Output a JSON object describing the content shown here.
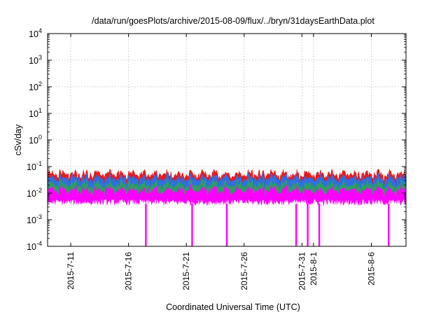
{
  "chart_data": {
    "type": "area",
    "title": "/data/run/goesPlots/archive/2015-08-09/flux/../bryn/31daysEarthData.plot",
    "xlabel": "Coordinated Universal Time (UTC)",
    "ylabel": "cSv/day",
    "x_range": [
      "2015-07-09",
      "2015-08-09"
    ],
    "ylim": [
      0.0001,
      10000
    ],
    "y_scale": "log",
    "grid": true,
    "legend": "none",
    "x_ticks": [
      "2015-7-11",
      "2015-7-16",
      "2015-7-21",
      "2015-7-26",
      "2015-7-31",
      "2015-8-1",
      "2015-8-6"
    ],
    "y_ticks": [
      {
        "value": 0.0001,
        "base": "10",
        "exp": "-4"
      },
      {
        "value": 0.001,
        "base": "10",
        "exp": "-3"
      },
      {
        "value": 0.01,
        "base": "10",
        "exp": "-2"
      },
      {
        "value": 0.1,
        "base": "10",
        "exp": "-1"
      },
      {
        "value": 1,
        "base": "10",
        "exp": "0"
      },
      {
        "value": 10,
        "base": "10",
        "exp": "1"
      },
      {
        "value": 100,
        "base": "10",
        "exp": "2"
      },
      {
        "value": 1000,
        "base": "10",
        "exp": "3"
      },
      {
        "value": 10000,
        "base": "10",
        "exp": "4"
      }
    ],
    "series": [
      {
        "color": "#e8191c",
        "low": 0.004,
        "typical": 0.05,
        "high": 0.08
      },
      {
        "color": "#2f6fe0",
        "low": 0.004,
        "typical": 0.035,
        "high": 0.06
      },
      {
        "color": "#2e9e63",
        "low": 0.004,
        "typical": 0.02,
        "high": 0.035
      },
      {
        "color": "#ff00ff",
        "low": 0.004,
        "typical": 0.012,
        "high": 0.03,
        "dropouts": [
          "2015-07-17",
          "2015-07-21",
          "2015-07-24",
          "2015-07-30",
          "2015-07-31",
          "2015-08-01",
          "2015-08-07"
        ]
      }
    ]
  }
}
